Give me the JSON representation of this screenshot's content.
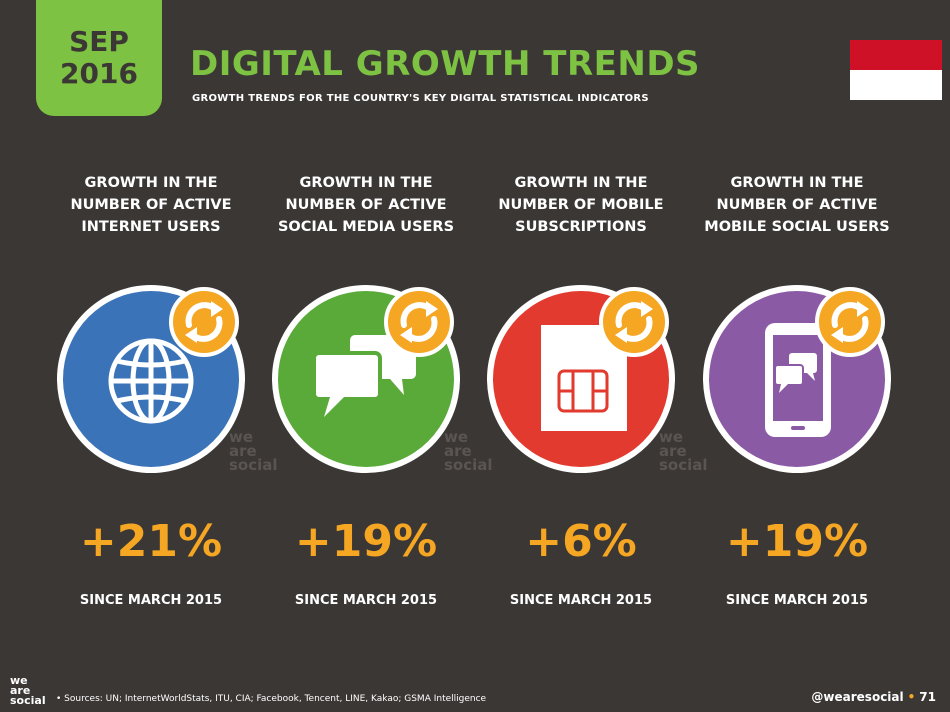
{
  "header": {
    "date_month": "SEP",
    "date_year": "2016",
    "title": "DIGITAL GROWTH TRENDS",
    "subtitle": "GROWTH TRENDS FOR THE COUNTRY'S KEY DIGITAL STATISTICAL INDICATORS"
  },
  "flag": {
    "name": "indonesia-flag",
    "colors": [
      "#ce1126",
      "#ffffff"
    ]
  },
  "watermark": [
    "we",
    "are",
    "social"
  ],
  "indicators": [
    {
      "heading_lines": [
        "GROWTH IN THE",
        "NUMBER OF ACTIVE",
        "INTERNET USERS"
      ],
      "value": "+21%",
      "since": "SINCE MARCH 2015",
      "color": "#3a73b8",
      "icon": "globe-icon"
    },
    {
      "heading_lines": [
        "GROWTH IN THE",
        "NUMBER OF ACTIVE",
        "SOCIAL MEDIA USERS"
      ],
      "value": "+19%",
      "since": "SINCE MARCH 2015",
      "color": "#5aaa3a",
      "icon": "chat-bubbles-icon"
    },
    {
      "heading_lines": [
        "GROWTH IN THE",
        "NUMBER OF MOBILE",
        "SUBSCRIPTIONS"
      ],
      "value": "+6%",
      "since": "SINCE MARCH 2015",
      "color": "#e23a2e",
      "icon": "sim-card-icon"
    },
    {
      "heading_lines": [
        "GROWTH IN THE",
        "NUMBER OF ACTIVE",
        "MOBILE SOCIAL USERS"
      ],
      "value": "+19%",
      "since": "SINCE MARCH 2015",
      "color": "#8b5aa5",
      "icon": "mobile-chat-icon"
    }
  ],
  "badge_color": "#f5a623",
  "footer": {
    "logo_lines": [
      "we",
      "are",
      "social"
    ],
    "sources": "• Sources: UN; InternetWorldStats, ITU, CIA; Facebook, Tencent, LINE, Kakao; GSMA Intelligence",
    "handle": "@wearesocial",
    "separator": "•",
    "page": "71"
  }
}
